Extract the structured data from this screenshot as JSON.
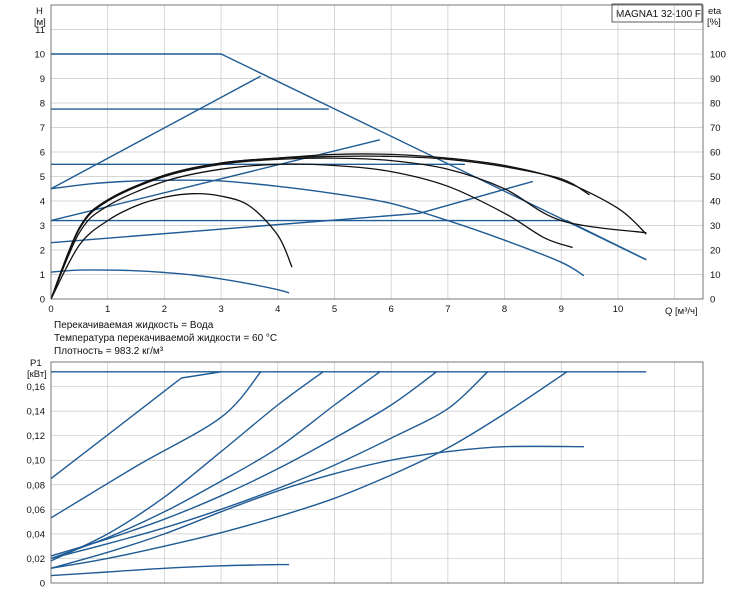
{
  "title": "MAGNA1 32-100 F",
  "notes": [
    "Перекачиваемая жидкость = Вода",
    "Температура перекачиваемой жидкости = 60 °C",
    "Плотность = 983.2 кг/м³"
  ],
  "colors": {
    "blue": "#1f5b94",
    "black": "#111111",
    "grid": "#c8c8c8"
  },
  "chart_data": [
    {
      "type": "line",
      "name": "head-efficiency",
      "x_axis": {
        "label": "Q [м³/ч]",
        "lim": [
          0,
          11.5
        ],
        "ticks": [
          0,
          1,
          2,
          3,
          4,
          5,
          6,
          7,
          8,
          9,
          10
        ]
      },
      "y_axis": {
        "label_top": "H",
        "label_unit": "[м]",
        "lim": [
          0,
          12
        ],
        "ticks": [
          0,
          1,
          2,
          3,
          4,
          5,
          6,
          7,
          8,
          9,
          10,
          11
        ]
      },
      "y2_axis": {
        "label_top": "eta",
        "label_unit": "[%]",
        "lim": [
          0,
          120
        ],
        "ticks": [
          0,
          10,
          20,
          30,
          40,
          50,
          60,
          70,
          80,
          90,
          100
        ]
      },
      "grid": true,
      "series": [
        {
          "color": "blue",
          "points": [
            [
              0,
              10
            ],
            [
              3,
              10
            ],
            [
              10.5,
              1.6
            ]
          ]
        },
        {
          "color": "blue",
          "points": [
            [
              0,
              7.75
            ],
            [
              4.9,
              7.75
            ]
          ]
        },
        {
          "color": "blue",
          "points": [
            [
              0,
              5.5
            ],
            [
              7.3,
              5.5
            ]
          ]
        },
        {
          "color": "blue",
          "points": [
            [
              0,
              3.2
            ],
            [
              9.1,
              3.2
            ],
            [
              10.5,
              1.6
            ]
          ]
        },
        {
          "color": "blue",
          "points": [
            [
              0,
              4.5
            ],
            [
              0.7,
              4.7
            ],
            [
              1.5,
              4.82
            ],
            [
              2.3,
              4.85
            ],
            [
              3,
              4.82
            ],
            [
              4,
              4.6
            ],
            [
              5,
              4.3
            ],
            [
              6,
              3.9
            ],
            [
              7,
              3.2
            ],
            [
              8,
              2.4
            ],
            [
              9,
              1.5
            ],
            [
              9.4,
              0.95
            ]
          ]
        },
        {
          "color": "blue",
          "points": [
            [
              0,
              1.1
            ],
            [
              0.5,
              1.18
            ],
            [
              1,
              1.18
            ],
            [
              1.5,
              1.15
            ],
            [
              2,
              1.08
            ],
            [
              2.5,
              0.98
            ],
            [
              3,
              0.82
            ],
            [
              3.5,
              0.62
            ],
            [
              4,
              0.38
            ],
            [
              4.2,
              0.25
            ]
          ]
        },
        {
          "color": "blue",
          "points": [
            [
              0,
              4.5
            ],
            [
              3.7,
              9.1
            ]
          ]
        },
        {
          "color": "blue",
          "points": [
            [
              0,
              3.2
            ],
            [
              5.8,
              6.5
            ]
          ]
        },
        {
          "color": "blue",
          "points": [
            [
              0,
              2.3
            ],
            [
              6.5,
              3.5
            ],
            [
              8.5,
              4.8
            ]
          ]
        },
        {
          "color": "black",
          "points": [
            [
              0,
              0
            ],
            [
              0.5,
              2.2
            ],
            [
              1,
              3.2
            ],
            [
              1.5,
              3.8
            ],
            [
              2,
              4.15
            ],
            [
              2.5,
              4.3
            ],
            [
              3,
              4.2
            ],
            [
              3.5,
              3.8
            ],
            [
              4,
              2.6
            ],
            [
              4.25,
              1.3
            ]
          ]
        },
        {
          "color": "black",
          "points": [
            [
              0,
              0
            ],
            [
              0.5,
              2.7
            ],
            [
              1,
              3.8
            ],
            [
              2,
              4.8
            ],
            [
              3,
              5.3
            ],
            [
              4,
              5.5
            ],
            [
              5,
              5.45
            ],
            [
              6,
              5.2
            ],
            [
              7,
              4.6
            ],
            [
              8,
              3.5
            ],
            [
              8.7,
              2.5
            ],
            [
              9.2,
              2.1
            ]
          ]
        },
        {
          "color": "black",
          "points": [
            [
              0,
              0
            ],
            [
              0.5,
              2.9
            ],
            [
              1,
              4.0
            ],
            [
              2,
              5.0
            ],
            [
              3,
              5.5
            ],
            [
              4,
              5.7
            ],
            [
              5,
              5.75
            ],
            [
              6,
              5.65
            ],
            [
              7,
              5.3
            ],
            [
              8,
              4.5
            ],
            [
              9,
              3.2
            ],
            [
              10.5,
              2.7
            ]
          ]
        },
        {
          "color": "black",
          "points": [
            [
              0,
              0
            ],
            [
              0.5,
              2.9
            ],
            [
              1,
              4.05
            ],
            [
              2,
              5.05
            ],
            [
              3,
              5.55
            ],
            [
              4,
              5.75
            ],
            [
              5,
              5.82
            ],
            [
              6,
              5.82
            ],
            [
              7,
              5.7
            ],
            [
              8,
              5.4
            ],
            [
              9,
              4.9
            ],
            [
              9.5,
              4.25
            ]
          ]
        },
        {
          "color": "black",
          "points": [
            [
              0,
              0
            ],
            [
              0.5,
              2.85
            ],
            [
              1,
              4.0
            ],
            [
              2,
              5.05
            ],
            [
              3,
              5.55
            ],
            [
              4,
              5.75
            ],
            [
              5,
              5.9
            ],
            [
              6,
              5.9
            ],
            [
              7,
              5.75
            ],
            [
              8,
              5.45
            ],
            [
              9,
              4.85
            ],
            [
              10,
              3.7
            ],
            [
              10.5,
              2.65
            ]
          ]
        }
      ]
    },
    {
      "type": "line",
      "name": "power",
      "x_axis": {
        "label": "",
        "lim": [
          0,
          11.5
        ],
        "ticks": []
      },
      "y_axis": {
        "label_top": "P1",
        "label_unit": "[кВт]",
        "lim": [
          0,
          0.18
        ],
        "ticks": [
          0,
          0.02,
          0.04,
          0.06,
          0.08,
          0.1,
          0.12,
          0.14,
          0.16
        ],
        "tick_labels": [
          "0",
          "0,02",
          "0,04",
          "0,06",
          "0,08",
          "0,10",
          "0,12",
          "0,14",
          "0,16"
        ]
      },
      "grid": true,
      "series": [
        {
          "color": "blue",
          "points": [
            [
              0,
              0.172
            ],
            [
              10.5,
              0.172
            ]
          ]
        },
        {
          "color": "blue",
          "points": [
            [
              0,
              0.085
            ],
            [
              2.3,
              0.167
            ],
            [
              3,
              0.172
            ]
          ]
        },
        {
          "color": "blue",
          "points": [
            [
              0,
              0.053
            ],
            [
              1.5,
              0.095
            ],
            [
              3,
              0.135
            ],
            [
              3.7,
              0.172
            ]
          ]
        },
        {
          "color": "blue",
          "points": [
            [
              0,
              0.018
            ],
            [
              1,
              0.04
            ],
            [
              2,
              0.07
            ],
            [
              3,
              0.107
            ],
            [
              4,
              0.145
            ],
            [
              4.8,
              0.172
            ]
          ]
        },
        {
          "color": "blue",
          "points": [
            [
              0,
              0.02
            ],
            [
              1,
              0.037
            ],
            [
              2,
              0.058
            ],
            [
              3,
              0.083
            ],
            [
              4,
              0.11
            ],
            [
              5,
              0.145
            ],
            [
              5.8,
              0.172
            ]
          ]
        },
        {
          "color": "blue",
          "points": [
            [
              0,
              0.022
            ],
            [
              1,
              0.036
            ],
            [
              2,
              0.052
            ],
            [
              3,
              0.071
            ],
            [
              4,
              0.093
            ],
            [
              5,
              0.118
            ],
            [
              6,
              0.145
            ],
            [
              6.8,
              0.172
            ]
          ]
        },
        {
          "color": "blue",
          "points": [
            [
              0,
              0.02
            ],
            [
              1,
              0.032
            ],
            [
              2,
              0.045
            ],
            [
              3,
              0.06
            ],
            [
              4,
              0.077
            ],
            [
              5,
              0.096
            ],
            [
              6,
              0.118
            ],
            [
              7,
              0.142
            ],
            [
              7.7,
              0.172
            ]
          ]
        },
        {
          "color": "blue",
          "points": [
            [
              0,
              0.012
            ],
            [
              1,
              0.02
            ],
            [
              2,
              0.03
            ],
            [
              3,
              0.041
            ],
            [
              4,
              0.054
            ],
            [
              5,
              0.069
            ],
            [
              6,
              0.088
            ],
            [
              7,
              0.11
            ],
            [
              8,
              0.138
            ],
            [
              9.1,
              0.172
            ]
          ]
        },
        {
          "color": "blue",
          "points": [
            [
              0,
              0.012
            ],
            [
              1,
              0.025
            ],
            [
              2,
              0.04
            ],
            [
              3,
              0.058
            ],
            [
              4,
              0.075
            ],
            [
              5,
              0.089
            ],
            [
              6,
              0.1
            ],
            [
              7,
              0.107
            ],
            [
              8,
              0.111
            ],
            [
              9.4,
              0.111
            ]
          ]
        },
        {
          "color": "blue",
          "points": [
            [
              0,
              0.006
            ],
            [
              1,
              0.009
            ],
            [
              2,
              0.012
            ],
            [
              3,
              0.014
            ],
            [
              4,
              0.015
            ],
            [
              4.2,
              0.015
            ]
          ]
        }
      ]
    }
  ]
}
